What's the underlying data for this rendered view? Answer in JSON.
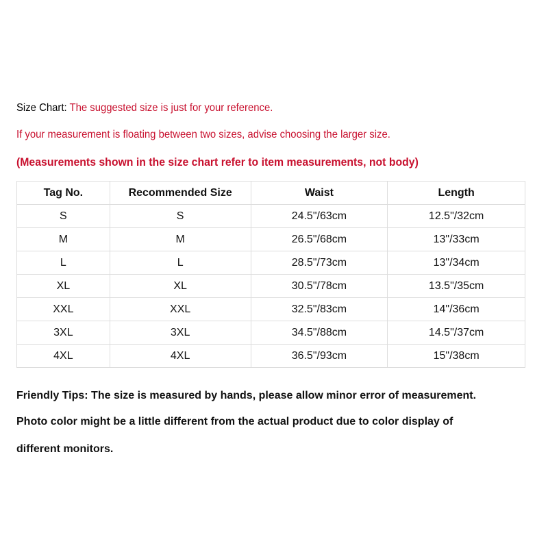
{
  "intro": {
    "label": "Size Chart",
    "colon": ": ",
    "note": "The suggested size is just for your reference.",
    "advice": "If your measurement is floating between two sizes, advise choosing the larger size.",
    "disclaimer": "(Measurements shown in the size chart refer to item measurements, not body)"
  },
  "table": {
    "headers": [
      "Tag No.",
      "Recommended Size",
      "Waist",
      "Length"
    ],
    "rows": [
      [
        "S",
        "S",
        "24.5\"/63cm",
        "12.5\"/32cm"
      ],
      [
        "M",
        "M",
        "26.5\"/68cm",
        "13\"/33cm"
      ],
      [
        "L",
        "L",
        "28.5\"/73cm",
        "13\"/34cm"
      ],
      [
        "XL",
        "XL",
        "30.5\"/78cm",
        "13.5\"/35cm"
      ],
      [
        "XXL",
        "XXL",
        "32.5\"/83cm",
        "14\"/36cm"
      ],
      [
        "3XL",
        "3XL",
        "34.5\"/88cm",
        "14.5\"/37cm"
      ],
      [
        "4XL",
        "4XL",
        "36.5\"/93cm",
        "15\"/38cm"
      ]
    ]
  },
  "tips": {
    "line1": "Friendly Tips: The size is measured by hands, please allow minor error of measurement.",
    "line2": "Photo color might be a little different from the actual product due to color display of",
    "line3": "different monitors."
  },
  "colors": {
    "accent": "#c8102e",
    "text": "#111111",
    "border": "#dddddd"
  }
}
